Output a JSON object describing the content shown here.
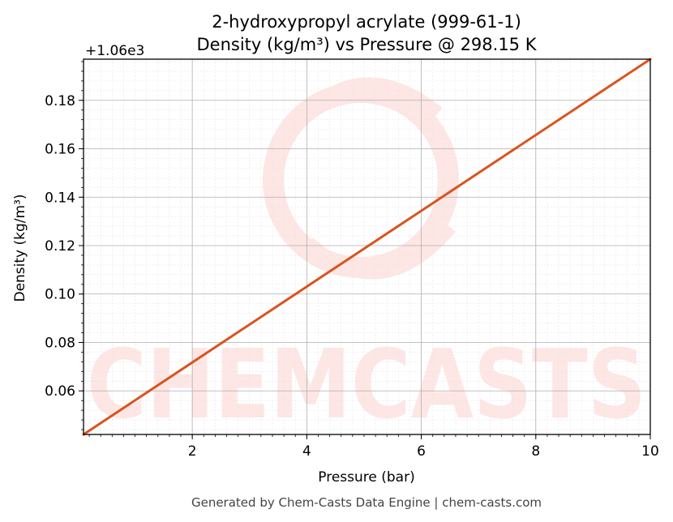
{
  "chart_data": {
    "type": "line",
    "title_line1": "2-hydroxypropyl acrylate (999-61-1)",
    "title_line2": "Density (kg/m³) vs Pressure @ 298.15 K",
    "xlabel": "Pressure (bar)",
    "ylabel": "Density (kg/m³)",
    "y_offset_label": "+1.06e3",
    "y_offset": 1060,
    "xlim": [
      0.1,
      10
    ],
    "ylim": [
      1060.042,
      1060.197
    ],
    "x_ticks": [
      2,
      4,
      6,
      8,
      10
    ],
    "x_tick_labels": [
      "2",
      "4",
      "6",
      "8",
      "10"
    ],
    "y_ticks": [
      0.06,
      0.08,
      0.1,
      0.12,
      0.14,
      0.16,
      0.18
    ],
    "y_tick_labels": [
      "0.06",
      "0.08",
      "0.10",
      "0.12",
      "0.14",
      "0.16",
      "0.18"
    ],
    "grid": true,
    "series": [
      {
        "color": "#d9541e",
        "x": [
          0.1,
          10
        ],
        "y": [
          1060.042,
          1060.197
        ]
      }
    ],
    "watermark": "CHEMCASTS",
    "footer": "Generated by Chem-Casts Data Engine | chem-casts.com"
  }
}
